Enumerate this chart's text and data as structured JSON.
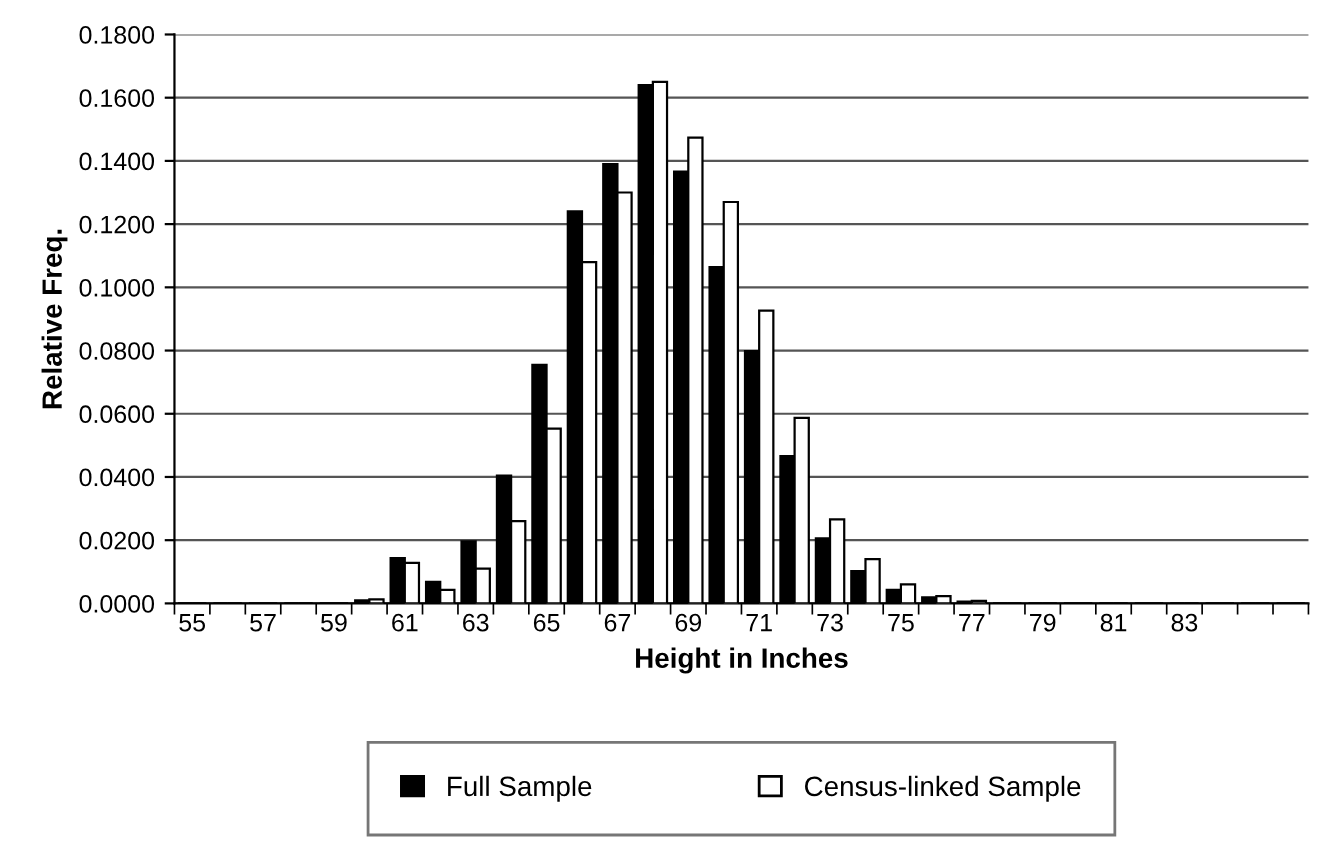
{
  "chart_data": {
    "type": "bar",
    "xlabel": "Height in Inches",
    "ylabel": "Relative Freq.",
    "categories": [
      "55",
      null,
      "57",
      null,
      "59",
      null,
      "61",
      null,
      "63",
      null,
      "65",
      null,
      "67",
      null,
      "69",
      null,
      "71",
      null,
      "73",
      null,
      "75",
      null,
      "77",
      null,
      "79",
      null,
      "81",
      null,
      "83",
      null,
      null,
      null
    ],
    "series": [
      {
        "name": "Full Sample",
        "color": "#000000",
        "values": [
          0,
          0,
          0,
          0,
          0,
          0.001,
          0.0143,
          0.0068,
          0.0196,
          0.0404,
          0.0755,
          0.124,
          0.139,
          0.164,
          0.1366,
          0.1064,
          0.0798,
          0.0466,
          0.0206,
          0.0102,
          0.0043,
          0.0019,
          0.0006,
          null,
          0,
          0,
          0,
          0,
          0,
          0,
          0,
          0
        ]
      },
      {
        "name": "Census-linked Sample",
        "color": "#ffffff",
        "values": [
          0,
          0,
          0,
          0,
          0,
          0.0013,
          0.0128,
          0.0043,
          0.011,
          0.026,
          0.0553,
          0.108,
          0.13,
          0.165,
          0.1474,
          0.127,
          0.0926,
          0.0587,
          0.0266,
          0.014,
          0.006,
          0.0023,
          0.0008,
          null,
          0,
          0,
          0,
          0,
          0,
          0,
          0,
          0
        ]
      }
    ],
    "ylim": [
      0,
      0.18
    ],
    "yticks": [
      {
        "value": 0,
        "label": "0.0000"
      },
      {
        "value": 0.02,
        "label": "0.0200"
      },
      {
        "value": 0.04,
        "label": "0.0400"
      },
      {
        "value": 0.06,
        "label": "0.0600"
      },
      {
        "value": 0.08,
        "label": "0.0800"
      },
      {
        "value": 0.1,
        "label": "0.1000"
      },
      {
        "value": 0.12,
        "label": "0.1200"
      },
      {
        "value": 0.14,
        "label": "0.1400"
      },
      {
        "value": 0.16,
        "label": "0.1600"
      },
      {
        "value": 0.18,
        "label": "0.1800"
      }
    ],
    "grid": "y",
    "legend": "bottom"
  }
}
